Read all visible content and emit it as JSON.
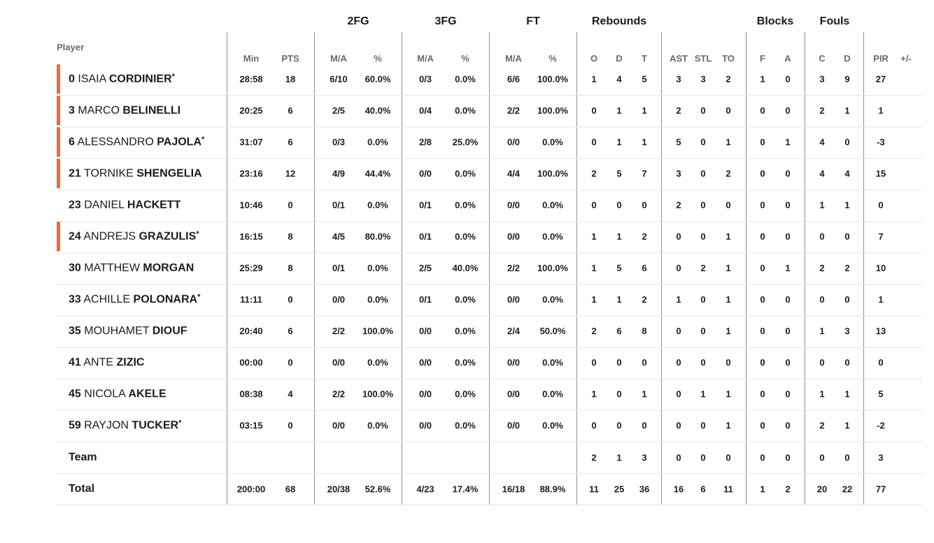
{
  "accent_color": "#ee6a3a",
  "headers": {
    "player": "Player",
    "groups": {
      "fg2": "2FG",
      "fg3": "3FG",
      "ft": "FT",
      "reb": "Rebounds",
      "blk": "Blocks",
      "fouls": "Fouls"
    },
    "columns": {
      "min": "Min",
      "pts": "PTS",
      "fg2_ma": "M/A",
      "fg2_pct": "%",
      "fg3_ma": "M/A",
      "fg3_pct": "%",
      "ft_ma": "M/A",
      "ft_pct": "%",
      "o": "O",
      "d": "D",
      "t": "T",
      "ast": "AST",
      "stl": "STL",
      "to": "TO",
      "blk_f": "F",
      "blk_a": "A",
      "fouls_c": "C",
      "fouls_d": "D",
      "pir": "PIR",
      "pm": "+/-"
    }
  },
  "players": [
    {
      "num": "0",
      "first": "ISAIA",
      "last": "CORDINIER",
      "star": "*",
      "starter": true,
      "min": "28:58",
      "pts": "18",
      "fg2_ma": "6/10",
      "fg2_pct": "60.0%",
      "fg3_ma": "0/3",
      "fg3_pct": "0.0%",
      "ft_ma": "6/6",
      "ft_pct": "100.0%",
      "o": "1",
      "d": "4",
      "t": "5",
      "ast": "3",
      "stl": "3",
      "to": "2",
      "blk_f": "1",
      "blk_a": "0",
      "fouls_c": "3",
      "fouls_d": "9",
      "pir": "27"
    },
    {
      "num": "3",
      "first": "MARCO",
      "last": "BELINELLI",
      "star": "",
      "starter": true,
      "min": "20:25",
      "pts": "6",
      "fg2_ma": "2/5",
      "fg2_pct": "40.0%",
      "fg3_ma": "0/4",
      "fg3_pct": "0.0%",
      "ft_ma": "2/2",
      "ft_pct": "100.0%",
      "o": "0",
      "d": "1",
      "t": "1",
      "ast": "2",
      "stl": "0",
      "to": "0",
      "blk_f": "0",
      "blk_a": "0",
      "fouls_c": "2",
      "fouls_d": "1",
      "pir": "1"
    },
    {
      "num": "6",
      "first": "ALESSANDRO",
      "last": "PAJOLA",
      "star": "*",
      "starter": true,
      "min": "31:07",
      "pts": "6",
      "fg2_ma": "0/3",
      "fg2_pct": "0.0%",
      "fg3_ma": "2/8",
      "fg3_pct": "25.0%",
      "ft_ma": "0/0",
      "ft_pct": "0.0%",
      "o": "0",
      "d": "1",
      "t": "1",
      "ast": "5",
      "stl": "0",
      "to": "1",
      "blk_f": "0",
      "blk_a": "1",
      "fouls_c": "4",
      "fouls_d": "0",
      "pir": "-3"
    },
    {
      "num": "21",
      "first": "TORNIKE",
      "last": "SHENGELIA",
      "star": "",
      "starter": true,
      "min": "23:16",
      "pts": "12",
      "fg2_ma": "4/9",
      "fg2_pct": "44.4%",
      "fg3_ma": "0/0",
      "fg3_pct": "0.0%",
      "ft_ma": "4/4",
      "ft_pct": "100.0%",
      "o": "2",
      "d": "5",
      "t": "7",
      "ast": "3",
      "stl": "0",
      "to": "2",
      "blk_f": "0",
      "blk_a": "0",
      "fouls_c": "4",
      "fouls_d": "4",
      "pir": "15"
    },
    {
      "num": "23",
      "first": "DANIEL",
      "last": "HACKETT",
      "star": "",
      "starter": false,
      "min": "10:46",
      "pts": "0",
      "fg2_ma": "0/1",
      "fg2_pct": "0.0%",
      "fg3_ma": "0/1",
      "fg3_pct": "0.0%",
      "ft_ma": "0/0",
      "ft_pct": "0.0%",
      "o": "0",
      "d": "0",
      "t": "0",
      "ast": "2",
      "stl": "0",
      "to": "0",
      "blk_f": "0",
      "blk_a": "0",
      "fouls_c": "1",
      "fouls_d": "1",
      "pir": "0"
    },
    {
      "num": "24",
      "first": "ANDREJS",
      "last": "GRAZULIS",
      "star": "*",
      "starter": true,
      "min": "16:15",
      "pts": "8",
      "fg2_ma": "4/5",
      "fg2_pct": "80.0%",
      "fg3_ma": "0/1",
      "fg3_pct": "0.0%",
      "ft_ma": "0/0",
      "ft_pct": "0.0%",
      "o": "1",
      "d": "1",
      "t": "2",
      "ast": "0",
      "stl": "0",
      "to": "1",
      "blk_f": "0",
      "blk_a": "0",
      "fouls_c": "0",
      "fouls_d": "0",
      "pir": "7"
    },
    {
      "num": "30",
      "first": "MATTHEW",
      "last": "MORGAN",
      "star": "",
      "starter": false,
      "min": "25:29",
      "pts": "8",
      "fg2_ma": "0/1",
      "fg2_pct": "0.0%",
      "fg3_ma": "2/5",
      "fg3_pct": "40.0%",
      "ft_ma": "2/2",
      "ft_pct": "100.0%",
      "o": "1",
      "d": "5",
      "t": "6",
      "ast": "0",
      "stl": "2",
      "to": "1",
      "blk_f": "0",
      "blk_a": "1",
      "fouls_c": "2",
      "fouls_d": "2",
      "pir": "10"
    },
    {
      "num": "33",
      "first": "ACHILLE",
      "last": "POLONARA",
      "star": "*",
      "starter": false,
      "min": "11:11",
      "pts": "0",
      "fg2_ma": "0/0",
      "fg2_pct": "0.0%",
      "fg3_ma": "0/1",
      "fg3_pct": "0.0%",
      "ft_ma": "0/0",
      "ft_pct": "0.0%",
      "o": "1",
      "d": "1",
      "t": "2",
      "ast": "1",
      "stl": "0",
      "to": "1",
      "blk_f": "0",
      "blk_a": "0",
      "fouls_c": "0",
      "fouls_d": "0",
      "pir": "1"
    },
    {
      "num": "35",
      "first": "MOUHAMET",
      "last": "DIOUF",
      "star": "",
      "starter": false,
      "min": "20:40",
      "pts": "6",
      "fg2_ma": "2/2",
      "fg2_pct": "100.0%",
      "fg3_ma": "0/0",
      "fg3_pct": "0.0%",
      "ft_ma": "2/4",
      "ft_pct": "50.0%",
      "o": "2",
      "d": "6",
      "t": "8",
      "ast": "0",
      "stl": "0",
      "to": "1",
      "blk_f": "0",
      "blk_a": "0",
      "fouls_c": "1",
      "fouls_d": "3",
      "pir": "13"
    },
    {
      "num": "41",
      "first": "ANTE",
      "last": "ZIZIC",
      "star": "",
      "starter": false,
      "min": "00:00",
      "pts": "0",
      "fg2_ma": "0/0",
      "fg2_pct": "0.0%",
      "fg3_ma": "0/0",
      "fg3_pct": "0.0%",
      "ft_ma": "0/0",
      "ft_pct": "0.0%",
      "o": "0",
      "d": "0",
      "t": "0",
      "ast": "0",
      "stl": "0",
      "to": "0",
      "blk_f": "0",
      "blk_a": "0",
      "fouls_c": "0",
      "fouls_d": "0",
      "pir": "0"
    },
    {
      "num": "45",
      "first": "NICOLA",
      "last": "AKELE",
      "star": "",
      "starter": false,
      "min": "08:38",
      "pts": "4",
      "fg2_ma": "2/2",
      "fg2_pct": "100.0%",
      "fg3_ma": "0/0",
      "fg3_pct": "0.0%",
      "ft_ma": "0/0",
      "ft_pct": "0.0%",
      "o": "1",
      "d": "0",
      "t": "1",
      "ast": "0",
      "stl": "1",
      "to": "1",
      "blk_f": "0",
      "blk_a": "0",
      "fouls_c": "1",
      "fouls_d": "1",
      "pir": "5"
    },
    {
      "num": "59",
      "first": "RAYJON",
      "last": "TUCKER",
      "star": "*",
      "starter": false,
      "min": "03:15",
      "pts": "0",
      "fg2_ma": "0/0",
      "fg2_pct": "0.0%",
      "fg3_ma": "0/0",
      "fg3_pct": "0.0%",
      "ft_ma": "0/0",
      "ft_pct": "0.0%",
      "o": "0",
      "d": "0",
      "t": "0",
      "ast": "0",
      "stl": "0",
      "to": "1",
      "blk_f": "0",
      "blk_a": "0",
      "fouls_c": "2",
      "fouls_d": "1",
      "pir": "-2"
    }
  ],
  "team": {
    "label": "Team",
    "o": "2",
    "d": "1",
    "t": "3",
    "ast": "0",
    "stl": "0",
    "to": "0",
    "blk_f": "0",
    "blk_a": "0",
    "fouls_c": "0",
    "fouls_d": "0",
    "pir": "3"
  },
  "total": {
    "label": "Total",
    "min": "200:00",
    "pts": "68",
    "fg2_ma": "20/38",
    "fg2_pct": "52.6%",
    "fg3_ma": "4/23",
    "fg3_pct": "17.4%",
    "ft_ma": "16/18",
    "ft_pct": "88.9%",
    "o": "11",
    "d": "25",
    "t": "36",
    "ast": "16",
    "stl": "6",
    "to": "11",
    "blk_f": "1",
    "blk_a": "2",
    "fouls_c": "20",
    "fouls_d": "22",
    "pir": "77"
  }
}
